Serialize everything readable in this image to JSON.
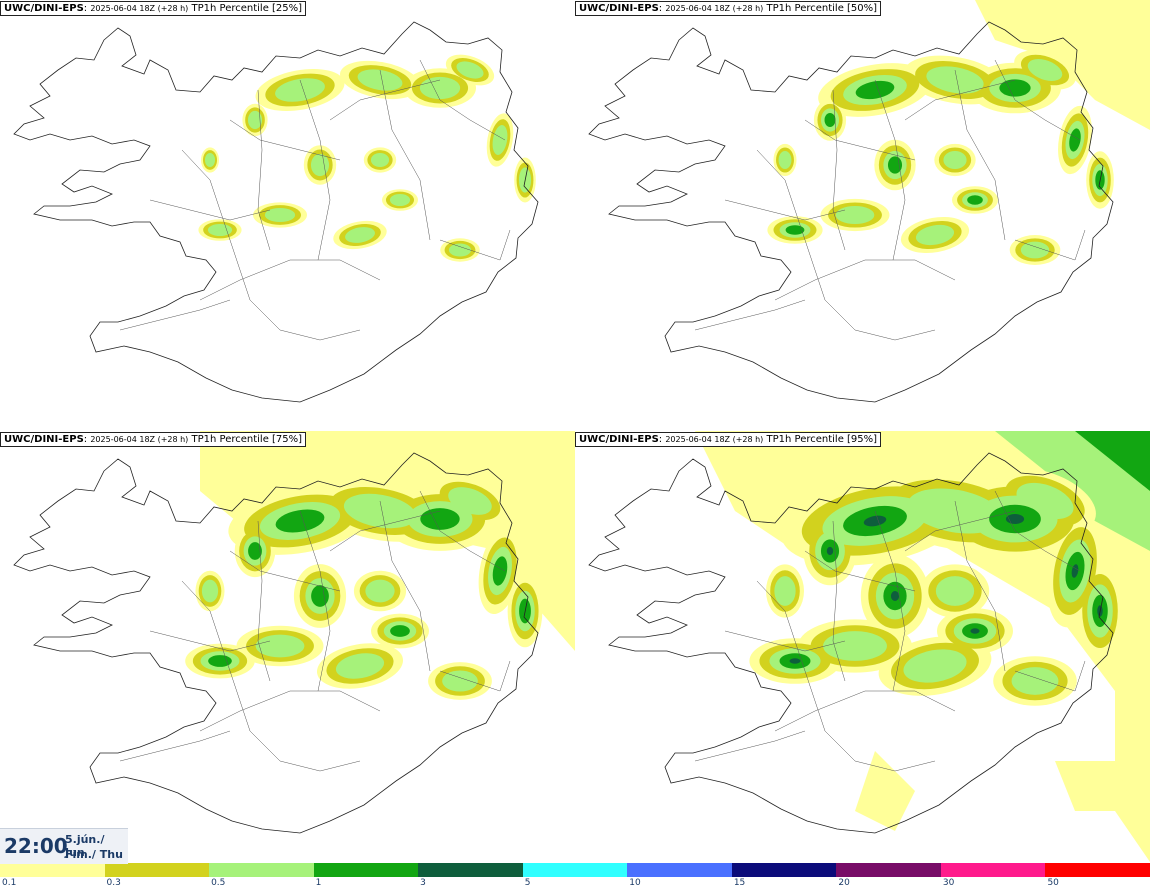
{
  "panels": [
    {
      "model": "UWC/DINI-EPS",
      "run": "2025-06-04 18Z (+28 h)",
      "param": "TP1h Percentile [25%]"
    },
    {
      "model": "UWC/DINI-EPS",
      "run": "2025-06-04 18Z (+28 h)",
      "param": "TP1h Percentile [50%]"
    },
    {
      "model": "UWC/DINI-EPS",
      "run": "2025-06-04 18Z (+28 h)",
      "param": "TP1h Percentile [75%]"
    },
    {
      "model": "UWC/DINI-EPS",
      "run": "2025-06-04 18Z (+28 h)",
      "param": "TP1h Percentile [95%]"
    }
  ],
  "time": {
    "clock": "22:00",
    "date_line1": "5.jún./ Jun",
    "date_line2": "Fim./ Thu"
  },
  "legend": {
    "levels": [
      "0.1",
      "0.3",
      "0.5",
      "1",
      "3",
      "5",
      "10",
      "15",
      "20",
      "30",
      "50"
    ],
    "colors": [
      "#ffff99",
      "#d2d21e",
      "#a6f27a",
      "#12a612",
      "#0e5e3c",
      "#30ffff",
      "#4a70ff",
      "#0b0b7a",
      "#780c68",
      "#ff1a8c",
      "#ff0000"
    ]
  },
  "map_colors": {
    "coast": "#222222",
    "roads": "#555555",
    "c01": "#ffff99",
    "c03": "#d2d21e",
    "c05": "#a6f27a",
    "c1": "#12a612",
    "c3": "#0e5e3c"
  }
}
